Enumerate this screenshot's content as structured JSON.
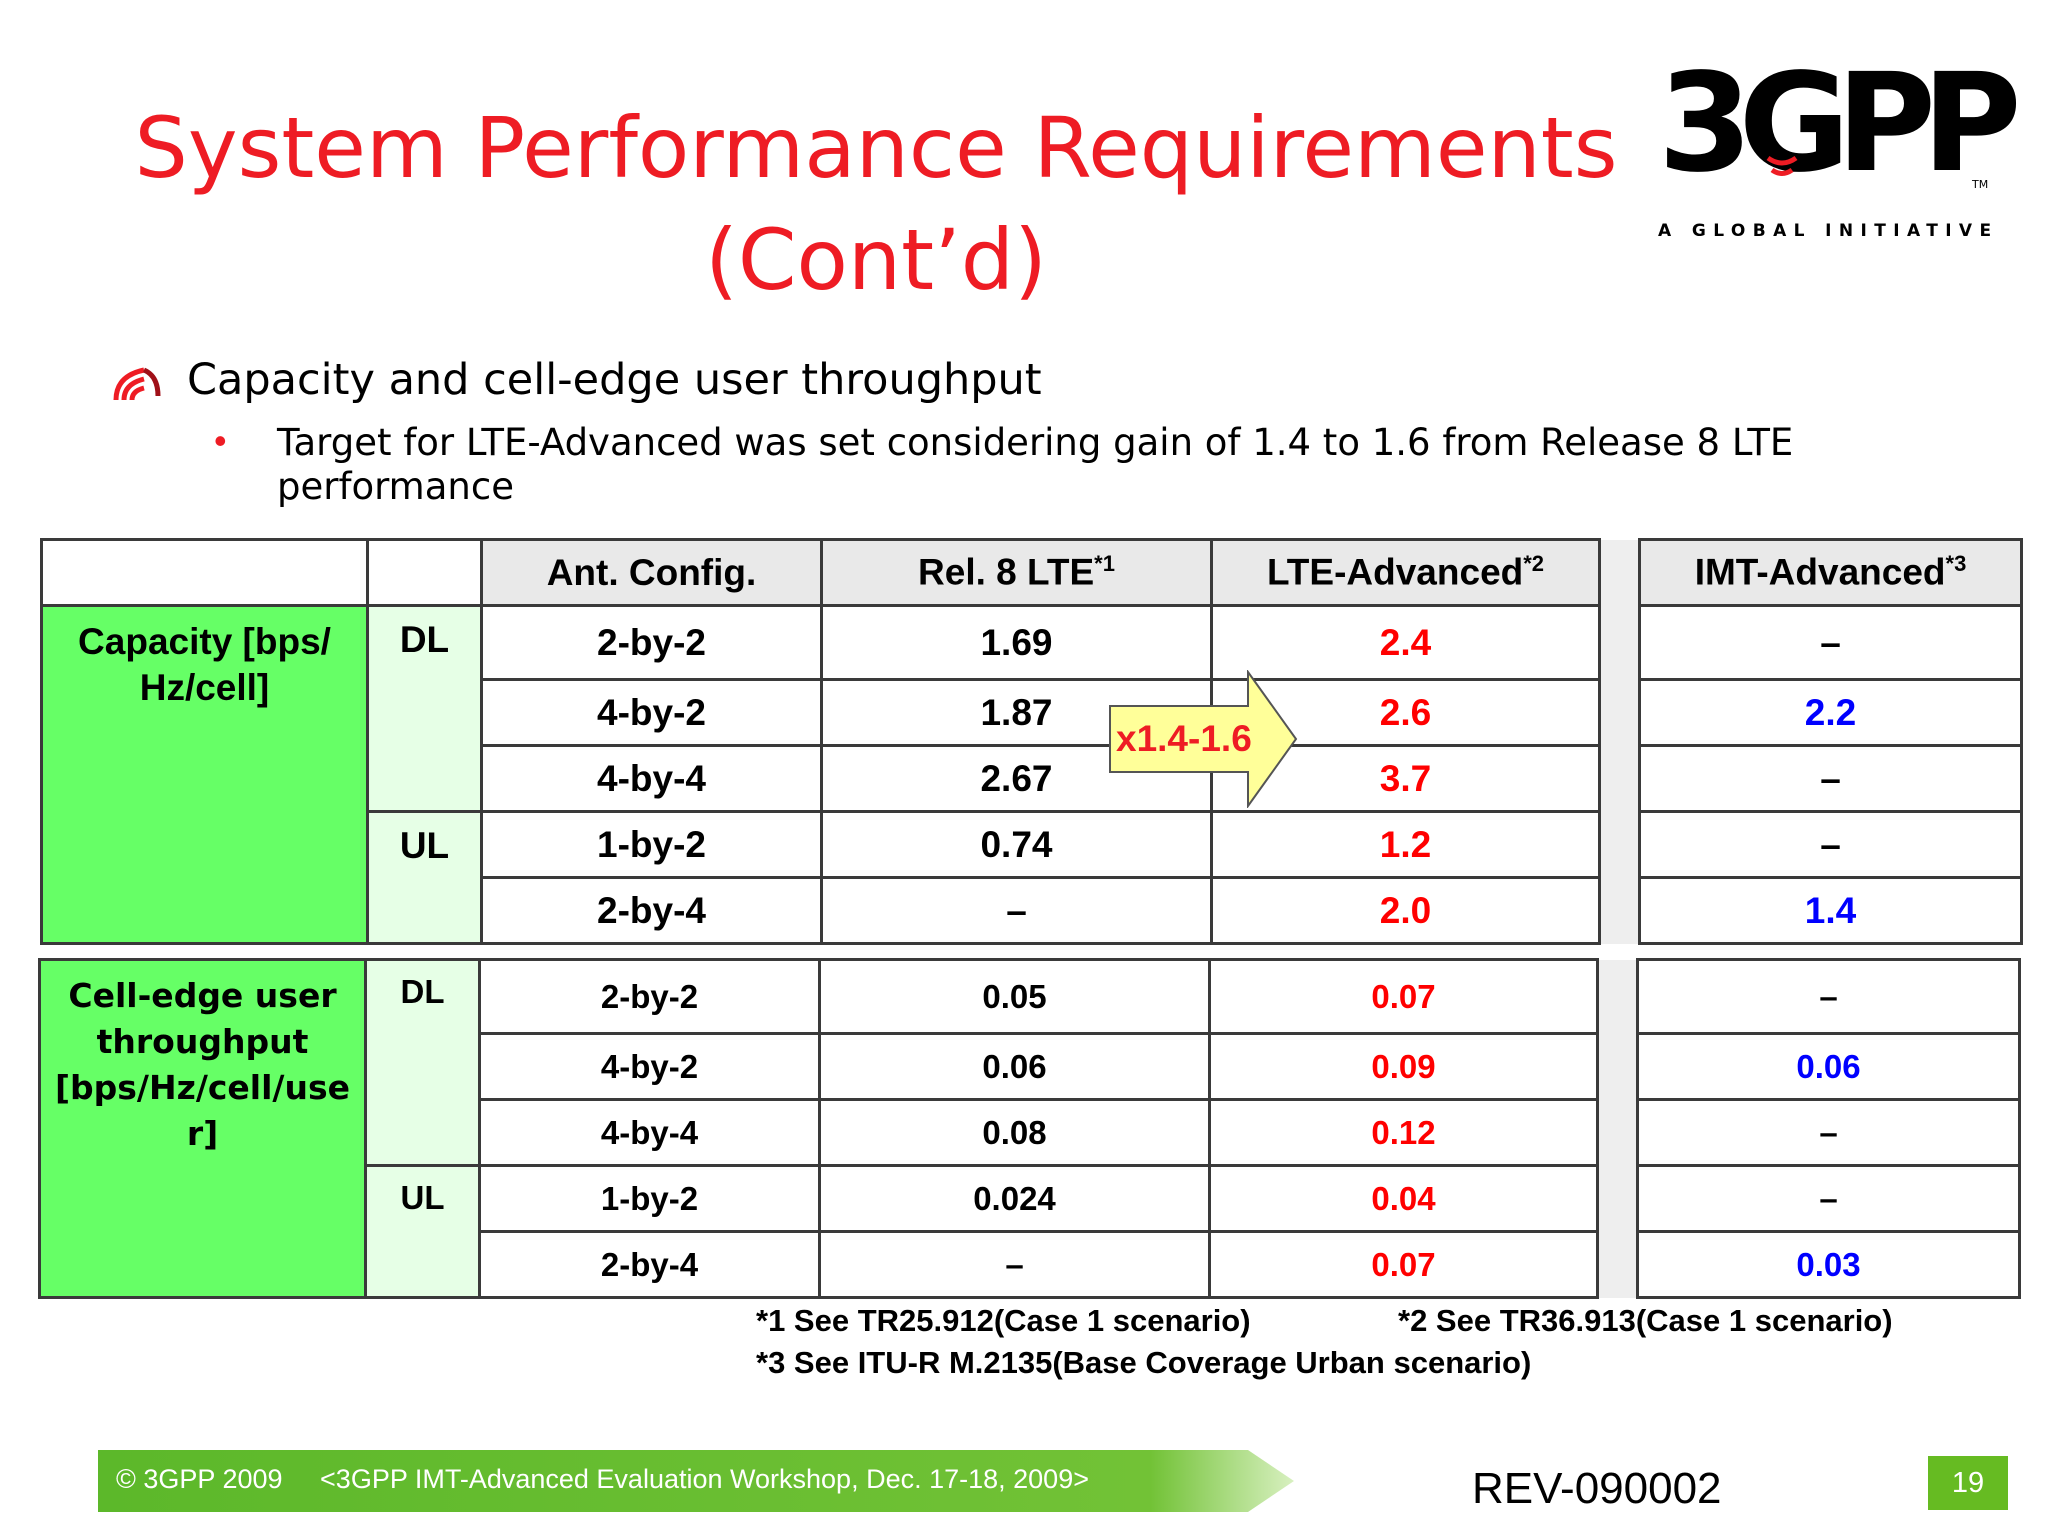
{
  "slide": {
    "title_line1": "System Performance Requirements",
    "title_line2": "(Cont’d)"
  },
  "logo": {
    "brand": "3GPP",
    "tm": "TM",
    "tagline": "A GLOBAL INITIATIVE"
  },
  "bullets": {
    "main": "Capacity and cell-edge user throughput",
    "sub": "Target for LTE-Advanced was set considering gain of 1.4 to 1.6 from Release 8 LTE performance"
  },
  "table": {
    "headers": {
      "ant": "Ant. Config.",
      "rel8": "Rel. 8 LTE",
      "rel8_note": "*1",
      "lte_adv": "LTE-Advanced",
      "lte_adv_note": "*2",
      "imt_adv": "IMT-Advanced",
      "imt_adv_note": "*3"
    },
    "capacity": {
      "label": "Capacity [bps/ Hz/cell]",
      "dl": "DL",
      "ul": "UL",
      "rows": [
        {
          "ant": "2-by-2",
          "rel8": "1.69",
          "lte": "2.4",
          "imt": "–"
        },
        {
          "ant": "4-by-2",
          "rel8": "1.87",
          "lte": "2.6",
          "imt": "2.2"
        },
        {
          "ant": "4-by-4",
          "rel8": "2.67",
          "lte": "3.7",
          "imt": "–"
        },
        {
          "ant": "1-by-2",
          "rel8": "0.74",
          "lte": "1.2",
          "imt": "–"
        },
        {
          "ant": "2-by-4",
          "rel8": "–",
          "lte": "2.0",
          "imt": "1.4"
        }
      ]
    },
    "celledge": {
      "label": "Cell-edge user throughput [bps/Hz/cell/use r]",
      "dl": "DL",
      "ul": "UL",
      "rows": [
        {
          "ant": "2-by-2",
          "rel8": "0.05",
          "lte": "0.07",
          "imt": "–"
        },
        {
          "ant": "4-by-2",
          "rel8": "0.06",
          "lte": "0.09",
          "imt": "0.06"
        },
        {
          "ant": "4-by-4",
          "rel8": "0.08",
          "lte": "0.12",
          "imt": "–"
        },
        {
          "ant": "1-by-2",
          "rel8": "0.024",
          "lte": "0.04",
          "imt": "–"
        },
        {
          "ant": "2-by-4",
          "rel8": "–",
          "lte": "0.07",
          "imt": "0.03"
        }
      ]
    }
  },
  "arrow_label": "x1.4-1.6",
  "notes": {
    "n1": "*1 See TR25.912(Case 1 scenario)",
    "n2": "*2 See TR36.913(Case 1 scenario)",
    "n3": "*3 See ITU-R M.2135(Base Coverage Urban scenario)"
  },
  "footer": {
    "copyright": "© 3GPP 2009",
    "event": "<3GPP IMT-Advanced Evaluation Workshop, Dec. 17-18, 2009>",
    "rev": "REV-090002",
    "page": "19"
  },
  "colors": {
    "title": "#ee1c24",
    "green_cell": "#66ff66",
    "light_green_cell": "#e6ffe6",
    "red_value": "#ff0000",
    "blue_value": "#0000ff",
    "arrow_fill": "#ffff99",
    "footer_bar": "#5cb82a"
  }
}
